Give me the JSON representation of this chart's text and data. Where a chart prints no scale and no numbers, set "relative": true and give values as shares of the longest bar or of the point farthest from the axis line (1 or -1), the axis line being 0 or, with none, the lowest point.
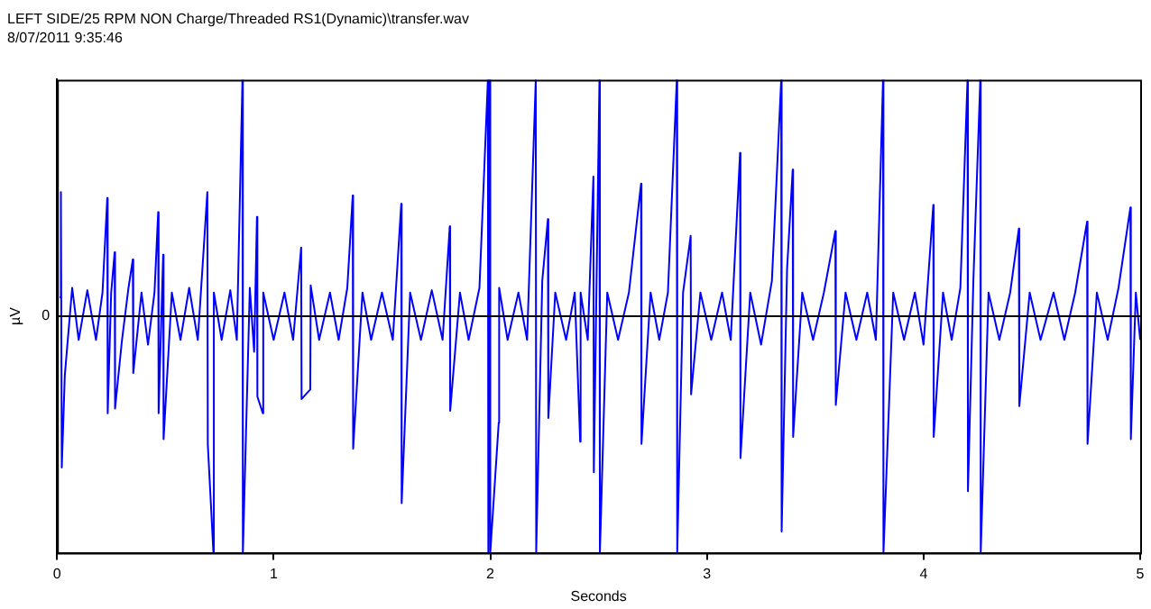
{
  "chart_data": {
    "type": "line",
    "title": "LEFT SIDE/25 RPM NON Charge/Threaded RS1(Dynamic)\\transfer.wav",
    "subtitle": "8/07/2011 9:35:46",
    "xlabel": "Seconds",
    "ylabel": "µV",
    "relative": true,
    "xlim": [
      0,
      5
    ],
    "xticks": [
      0,
      1,
      2,
      3,
      4,
      5
    ],
    "grid": false,
    "legend": false,
    "marker": "none",
    "ref_lines": [
      {
        "axis": "y",
        "value": 0,
        "label": "0",
        "color": "#000000"
      }
    ],
    "series": [
      {
        "color": "#0000ff",
        "x": [
          0.012,
          0.018,
          0.022,
          0.036,
          0.07,
          0.1,
          0.14,
          0.18,
          0.21,
          0.232,
          0.234,
          0.25,
          0.266,
          0.268,
          0.3,
          0.33,
          0.35,
          0.352,
          0.39,
          0.42,
          0.45,
          0.467,
          0.469,
          0.49,
          0.492,
          0.53,
          0.57,
          0.61,
          0.65,
          0.694,
          0.696,
          0.722,
          0.724,
          0.76,
          0.8,
          0.83,
          0.856,
          0.858,
          0.89,
          0.91,
          0.923,
          0.925,
          0.95,
          0.952,
          1.0,
          1.05,
          1.09,
          1.127,
          1.129,
          1.169,
          1.171,
          1.21,
          1.26,
          1.3,
          1.34,
          1.365,
          1.367,
          1.41,
          1.45,
          1.5,
          1.55,
          1.589,
          1.591,
          1.63,
          1.68,
          1.73,
          1.78,
          1.813,
          1.815,
          1.86,
          1.9,
          1.95,
          1.989,
          1.991,
          1.998,
          2.0,
          2.039,
          2.041,
          2.08,
          2.13,
          2.17,
          2.21,
          2.212,
          2.24,
          2.266,
          2.268,
          2.3,
          2.35,
          2.39,
          2.415,
          2.417,
          2.45,
          2.476,
          2.478,
          2.504,
          2.506,
          2.54,
          2.59,
          2.64,
          2.696,
          2.698,
          2.74,
          2.78,
          2.82,
          2.861,
          2.863,
          2.89,
          2.925,
          2.927,
          2.97,
          3.02,
          3.07,
          3.11,
          3.153,
          3.155,
          3.2,
          3.25,
          3.3,
          3.343,
          3.345,
          3.37,
          3.396,
          3.398,
          3.44,
          3.49,
          3.54,
          3.593,
          3.595,
          3.64,
          3.69,
          3.74,
          3.78,
          3.813,
          3.815,
          3.86,
          3.91,
          3.96,
          4.0,
          4.045,
          4.047,
          4.09,
          4.13,
          4.17,
          4.203,
          4.205,
          4.23,
          4.262,
          4.264,
          4.3,
          4.35,
          4.4,
          4.44,
          4.442,
          4.49,
          4.54,
          4.6,
          4.65,
          4.7,
          4.755,
          4.757,
          4.8,
          4.85,
          4.9,
          4.955,
          4.957,
          4.98,
          5.0
        ],
        "values": [
          0.08,
          0.525,
          -0.64,
          -0.25,
          0.12,
          -0.1,
          0.11,
          -0.1,
          0.1,
          0.5,
          -0.41,
          0.1,
          0.27,
          -0.39,
          -0.1,
          0.12,
          0.24,
          -0.24,
          0.1,
          -0.12,
          0.1,
          0.44,
          -0.41,
          0.26,
          -0.52,
          0.1,
          -0.1,
          0.12,
          -0.1,
          0.525,
          -0.54,
          -1,
          0.1,
          -0.1,
          0.11,
          -0.1,
          1,
          -1,
          0.12,
          -0.15,
          0.42,
          -0.34,
          -0.41,
          0.1,
          -0.1,
          0.1,
          -0.1,
          0.29,
          -0.35,
          -0.31,
          0.13,
          -0.1,
          0.1,
          -0.1,
          0.12,
          0.51,
          -0.56,
          0.1,
          -0.1,
          0.1,
          -0.1,
          0.475,
          -0.79,
          0.1,
          -0.1,
          0.11,
          -0.1,
          0.38,
          -0.4,
          0.1,
          -0.1,
          0.12,
          1,
          -1,
          1,
          -1,
          -0.45,
          0.12,
          -0.1,
          0.1,
          -0.1,
          1,
          -1,
          0.15,
          0.41,
          -0.43,
          0.1,
          -0.1,
          0.1,
          -0.53,
          0.1,
          -0.1,
          0.59,
          -0.66,
          1,
          -1,
          0.1,
          -0.1,
          0.1,
          0.56,
          -0.54,
          0.1,
          -0.1,
          0.1,
          1,
          -1,
          0.1,
          0.34,
          -0.33,
          0.1,
          -0.1,
          0.1,
          -0.1,
          0.69,
          -0.6,
          0.1,
          -0.12,
          0.15,
          1,
          -0.91,
          0.2,
          0.62,
          -0.51,
          0.1,
          -0.1,
          0.1,
          0.36,
          -0.375,
          0.1,
          -0.1,
          0.1,
          -0.1,
          1,
          -1,
          0.1,
          -0.1,
          0.1,
          -0.12,
          0.47,
          -0.51,
          0.1,
          -0.1,
          0.12,
          1,
          -0.74,
          0.15,
          1,
          -1,
          0.1,
          -0.1,
          0.1,
          0.37,
          -0.38,
          0.1,
          -0.1,
          0.1,
          -0.1,
          0.1,
          0.4,
          -0.54,
          0.1,
          -0.1,
          0.12,
          0.46,
          -0.52,
          0.1,
          -0.1
        ]
      }
    ]
  }
}
